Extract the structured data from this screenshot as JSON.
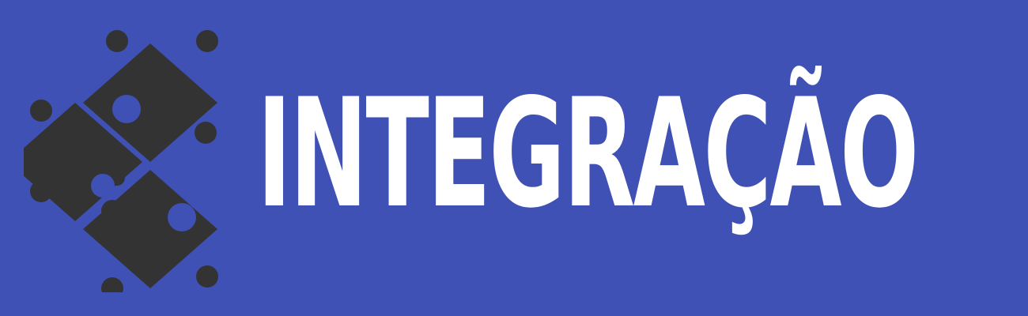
{
  "banner": {
    "title": "INTEGRAÇÃO",
    "icon": "puzzle-pieces-icon",
    "colors": {
      "background": "#3f51b5",
      "puzzle": "#333333",
      "text": "#ffffff"
    }
  }
}
